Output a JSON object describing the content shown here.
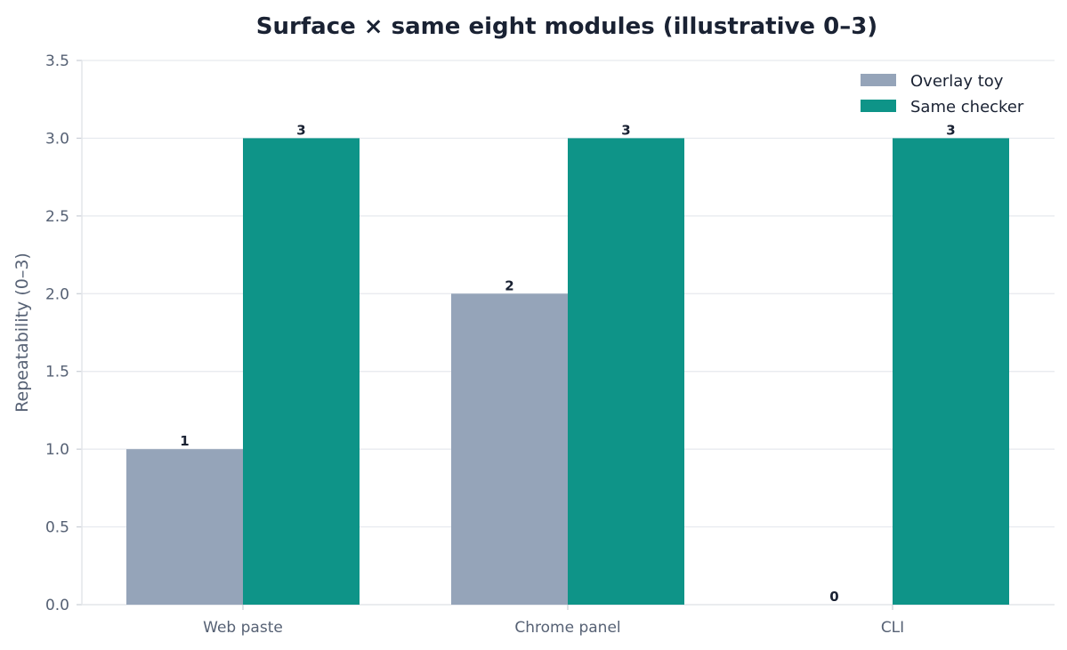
{
  "chart_data": {
    "type": "bar",
    "title": "Surface × same eight modules (illustrative 0–3)",
    "xlabel": "",
    "ylabel": "Repeatability (0–3)",
    "categories": [
      "Web paste",
      "Chrome panel",
      "CLI"
    ],
    "series": [
      {
        "name": "Overlay toy",
        "values": [
          1,
          2,
          0
        ],
        "color": "#95a4b9"
      },
      {
        "name": "Same checker",
        "values": [
          3,
          3,
          3
        ],
        "color": "#0e9488"
      }
    ],
    "ylim": [
      0,
      3.5
    ],
    "yticks": [
      "0.0",
      "0.5",
      "1.0",
      "1.5",
      "2.0",
      "2.5",
      "3.0",
      "3.5"
    ],
    "data_labels": [
      [
        "1",
        "2",
        "0"
      ],
      [
        "3",
        "3",
        "3"
      ]
    ],
    "grid": true,
    "legend_position": "top-right"
  }
}
